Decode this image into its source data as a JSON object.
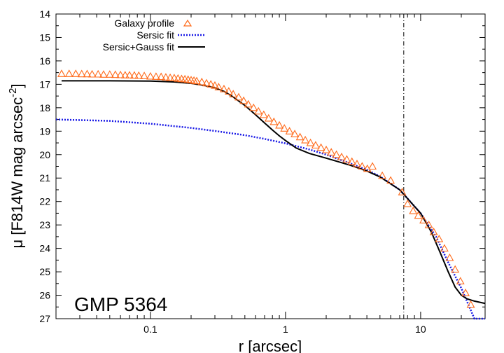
{
  "chart_data": {
    "type": "line",
    "title": "",
    "annotation": "GMP 5364",
    "xlabel": "r [arcsec]",
    "ylabel": {
      "main": "μ [F814W mag arcsec",
      "superscript": "-2",
      "closing": "]"
    },
    "xscale": "log",
    "xlim": [
      0.02,
      30
    ],
    "ylim": [
      14,
      27
    ],
    "y_inverted": true,
    "x_ticks": [
      {
        "value": 0.1,
        "label": "0.1"
      },
      {
        "value": 1,
        "label": "1"
      },
      {
        "value": 10,
        "label": "10"
      }
    ],
    "y_ticks": [
      14,
      15,
      16,
      17,
      18,
      19,
      20,
      21,
      22,
      23,
      24,
      25,
      26,
      27
    ],
    "vertical_line": {
      "x": 7.5,
      "style": "dash-dot"
    },
    "legend_position": "top-left",
    "colors": {
      "profile": "#ff6a1a",
      "sersic": "#1a1ae6",
      "combined": "#000000"
    },
    "series": [
      {
        "name": "Galaxy profile",
        "kind": "markers",
        "marker": "open-triangle",
        "x": [
          0.022,
          0.025,
          0.028,
          0.031,
          0.034,
          0.037,
          0.041,
          0.045,
          0.05,
          0.055,
          0.06,
          0.065,
          0.07,
          0.076,
          0.082,
          0.09,
          0.1,
          0.11,
          0.12,
          0.13,
          0.14,
          0.15,
          0.16,
          0.17,
          0.18,
          0.19,
          0.2,
          0.21,
          0.22,
          0.24,
          0.26,
          0.28,
          0.3,
          0.32,
          0.35,
          0.38,
          0.41,
          0.45,
          0.49,
          0.53,
          0.58,
          0.63,
          0.69,
          0.75,
          0.82,
          0.9,
          0.98,
          1.07,
          1.17,
          1.28,
          1.4,
          1.53,
          1.67,
          1.83,
          2.0,
          2.18,
          2.38,
          2.6,
          2.84,
          3.1,
          3.38,
          3.69,
          4.03,
          4.4,
          5.2,
          6.0,
          7.3,
          8.0,
          8.8,
          9.6,
          10.5,
          11.5,
          12.5,
          13.7,
          15.0,
          16.4,
          18.0,
          19.7,
          21.5,
          23.5
        ],
        "y": [
          16.55,
          16.55,
          16.55,
          16.56,
          16.56,
          16.57,
          16.57,
          16.58,
          16.58,
          16.59,
          16.6,
          16.61,
          16.61,
          16.62,
          16.63,
          16.64,
          16.66,
          16.67,
          16.68,
          16.7,
          16.72,
          16.73,
          16.75,
          16.77,
          16.78,
          16.8,
          16.82,
          16.84,
          16.86,
          16.9,
          16.95,
          17.0,
          17.05,
          17.12,
          17.2,
          17.3,
          17.42,
          17.55,
          17.7,
          17.85,
          18.0,
          18.15,
          18.3,
          18.45,
          18.6,
          18.75,
          18.88,
          19.0,
          19.12,
          19.25,
          19.38,
          19.5,
          19.6,
          19.7,
          19.8,
          19.9,
          20.0,
          20.1,
          20.2,
          20.3,
          20.4,
          20.5,
          20.6,
          20.5,
          20.9,
          21.1,
          21.6,
          22.1,
          22.4,
          22.6,
          22.8,
          23.0,
          23.3,
          23.6,
          24.0,
          24.4,
          24.9,
          25.4,
          25.9,
          26.4
        ]
      },
      {
        "name": "Sersic fit",
        "kind": "dotted-line",
        "x": [
          0.02,
          0.05,
          0.1,
          0.2,
          0.3,
          0.5,
          0.7,
          1.0,
          1.5,
          2.0,
          3.0,
          4.0,
          5.0,
          7.0,
          10.0,
          13.0,
          16.0,
          20.0,
          25.0,
          30.0
        ],
        "y": [
          18.5,
          18.56,
          18.68,
          18.86,
          18.99,
          19.17,
          19.33,
          19.52,
          19.78,
          20.0,
          20.37,
          20.65,
          20.93,
          21.5,
          22.5,
          23.5,
          24.6,
          25.7,
          27.0,
          27.3
        ]
      },
      {
        "name": "Sersic+Gauss fit",
        "kind": "solid-line",
        "x": [
          0.022,
          0.05,
          0.1,
          0.15,
          0.2,
          0.25,
          0.3,
          0.35,
          0.4,
          0.5,
          0.6,
          0.7,
          0.8,
          0.9,
          1.0,
          1.2,
          1.5,
          2.0,
          3.0,
          4.0,
          5.0,
          7.0,
          10.0,
          12.0,
          14.0,
          16.0,
          18.0,
          20.0,
          22.0,
          25.0,
          30.0
        ],
        "y": [
          16.85,
          16.85,
          16.86,
          16.9,
          16.96,
          17.05,
          17.15,
          17.3,
          17.5,
          17.9,
          18.3,
          18.65,
          18.95,
          19.2,
          19.4,
          19.72,
          19.95,
          20.15,
          20.45,
          20.7,
          20.95,
          21.5,
          22.5,
          23.3,
          24.2,
          25.0,
          25.65,
          26.0,
          26.15,
          26.25,
          26.35
        ]
      }
    ]
  }
}
